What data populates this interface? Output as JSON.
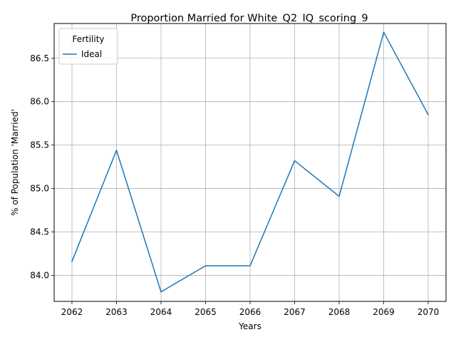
{
  "chart_data": {
    "type": "line",
    "title": "Proportion Married for White_Q2_IQ_scoring_9",
    "xlabel": "Years",
    "ylabel": "% of Population 'Married'",
    "x": [
      2062,
      2063,
      2064,
      2065,
      2066,
      2067,
      2068,
      2069,
      2070
    ],
    "series": [
      {
        "name": "Ideal",
        "color": "#1f77b4",
        "values": [
          84.16,
          85.44,
          83.81,
          84.11,
          84.11,
          85.32,
          84.91,
          86.8,
          85.85
        ]
      }
    ],
    "xlim": [
      2061.6,
      2070.4
    ],
    "ylim": [
      83.7,
      86.9
    ],
    "xticks": [
      "2062",
      "2063",
      "2064",
      "2065",
      "2066",
      "2067",
      "2068",
      "2069",
      "2070"
    ],
    "yticks": [
      "84.0",
      "84.5",
      "85.0",
      "85.5",
      "86.0",
      "86.5"
    ],
    "grid": true,
    "legend": {
      "title": "Fertility",
      "placement": "top-left"
    }
  }
}
